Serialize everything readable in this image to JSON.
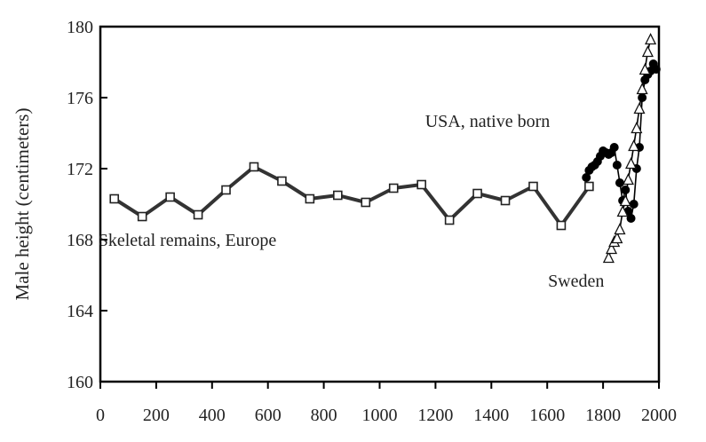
{
  "chart_data": {
    "type": "line",
    "ylabel": "Male height (centimeters)",
    "xlabel": "",
    "xlim": [
      0,
      2000
    ],
    "ylim": [
      160,
      180
    ],
    "xticks": [
      0,
      200,
      400,
      600,
      800,
      1000,
      1200,
      1400,
      1600,
      1800,
      2000
    ],
    "yticks": [
      160,
      164,
      168,
      172,
      176,
      180
    ],
    "grid": false,
    "series": [
      {
        "name": "Skeletal remains, Europe",
        "marker": "square",
        "color": "#333333",
        "x": [
          50,
          150,
          250,
          350,
          450,
          550,
          650,
          750,
          850,
          950,
          1050,
          1150,
          1250,
          1350,
          1450,
          1550,
          1650,
          1750
        ],
        "y": [
          170.3,
          169.3,
          170.4,
          169.4,
          170.8,
          172.1,
          171.3,
          170.3,
          170.5,
          170.1,
          170.9,
          171.1,
          169.1,
          170.6,
          170.2,
          171.0,
          168.8,
          171.0
        ]
      },
      {
        "name": "USA, native born",
        "marker": "circle",
        "color": "#000000",
        "x": [
          1740,
          1750,
          1760,
          1770,
          1780,
          1790,
          1800,
          1810,
          1820,
          1830,
          1840,
          1850,
          1860,
          1870,
          1880,
          1890,
          1900,
          1910,
          1920,
          1930,
          1940,
          1950,
          1960,
          1970,
          1980,
          1990
        ],
        "y": [
          171.5,
          171.9,
          172.1,
          172.2,
          172.4,
          172.7,
          173.0,
          172.9,
          172.8,
          172.9,
          173.2,
          172.2,
          171.2,
          170.2,
          170.8,
          169.6,
          169.2,
          170.0,
          172.0,
          173.2,
          176.0,
          177.0,
          177.3,
          177.5,
          177.9,
          177.6
        ]
      },
      {
        "name": "Sweden",
        "marker": "triangle",
        "color": "#000000",
        "x": [
          1820,
          1830,
          1840,
          1850,
          1860,
          1870,
          1880,
          1890,
          1900,
          1910,
          1920,
          1930,
          1940,
          1950,
          1960,
          1970
        ],
        "y": [
          167.0,
          167.5,
          167.9,
          168.1,
          168.6,
          169.6,
          170.2,
          171.4,
          172.3,
          173.3,
          174.3,
          175.4,
          176.5,
          177.6,
          178.6,
          179.3
        ]
      }
    ],
    "annotations": [
      {
        "text": "Skeletal remains, Europe",
        "x": 50,
        "y": 168.0
      },
      {
        "text": "USA, native born",
        "x": 1220,
        "y": 174.7
      },
      {
        "text": "Sweden",
        "x": 1660,
        "y": 165.7
      }
    ]
  }
}
